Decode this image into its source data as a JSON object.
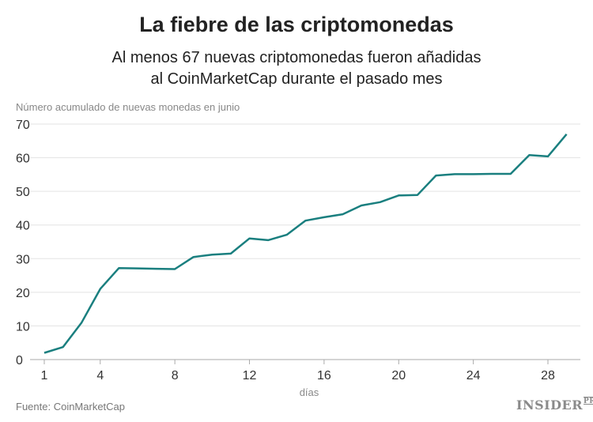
{
  "chart_data": {
    "type": "line",
    "title": "La fiebre de las criptomonedas",
    "subtitle": [
      "Al menos 67 nuevas criptomonedas fueron añadidas",
      "al CoinMarketCap durante el pasado mes"
    ],
    "ylabel": "Número acumulado de nuevas monedas en junio",
    "xlabel": "días",
    "source": "Fuente: CoinMarketCap",
    "logo": "INSIDER PRO",
    "ylim": [
      0,
      70
    ],
    "xlim": [
      1,
      29
    ],
    "yticks": [
      0,
      10,
      20,
      30,
      40,
      50,
      60,
      70
    ],
    "xticks": [
      1,
      4,
      8,
      12,
      16,
      20,
      24,
      28
    ],
    "grid": true,
    "color": "#1a7f7f",
    "x": [
      1,
      2,
      3,
      4,
      5,
      6,
      7,
      8,
      9,
      10,
      11,
      12,
      13,
      14,
      15,
      16,
      17,
      18,
      19,
      20,
      21,
      22,
      23,
      24,
      25,
      26,
      27,
      28,
      29
    ],
    "y": [
      2,
      3.7,
      11,
      21,
      27.2,
      27.1,
      27,
      26.9,
      30.5,
      31.2,
      31.5,
      36,
      35.5,
      37.1,
      41.3,
      42.3,
      43.2,
      45.8,
      46.8,
      48.8,
      48.9,
      54.7,
      55.1,
      55.1,
      55.2,
      55.2,
      60.8,
      60.4,
      67
    ]
  }
}
